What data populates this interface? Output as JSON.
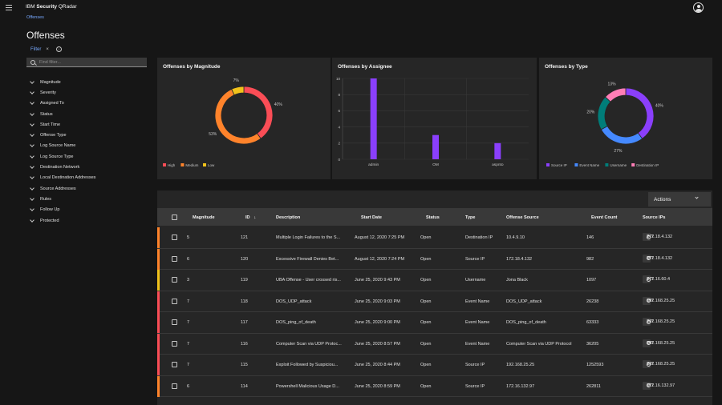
{
  "header": {
    "brand_ibm": "IBM",
    "brand_product": "Security",
    "brand_app": "QRadar"
  },
  "breadcrumb": "Offenses",
  "page_title": "Offenses",
  "filter": {
    "tag": "Filter",
    "close": "×",
    "info": "i",
    "search_placeholder": "Find filter..."
  },
  "filter_items": [
    "Magnitude",
    "Severity",
    "Assigned To",
    "Status",
    "Start Time",
    "Offense Type",
    "Log Source Name",
    "Log Source Type",
    "Destination Network",
    "Local Destination Addresses",
    "Source Addresses",
    "Rules",
    "Follow Up",
    "Protected"
  ],
  "chart_data": [
    {
      "type": "pie",
      "title": "Offenses by Magnitude",
      "categories": [
        "High",
        "Medium",
        "Low"
      ],
      "values": [
        40,
        53,
        7
      ],
      "labels": [
        "40%",
        "53%",
        "7%"
      ],
      "colors": [
        "#fa4d56",
        "#ff832b",
        "#f1c21b"
      ],
      "legend": "bottom"
    },
    {
      "type": "bar",
      "title": "Offenses by Assignee",
      "categories": [
        "admin",
        "OM",
        "aspnto"
      ],
      "values": [
        10,
        3,
        2
      ],
      "ylim": [
        0,
        10
      ],
      "yticks": [
        0,
        2,
        4,
        6,
        8,
        10
      ],
      "color": "#8a3ffc",
      "grid": true
    },
    {
      "type": "pie",
      "title": "Offenses by Type",
      "categories": [
        "Source IP",
        "Event Name",
        "Username",
        "Destination IP"
      ],
      "values": [
        40,
        27,
        20,
        13
      ],
      "labels": [
        "40%",
        "27%",
        "20%",
        "13%"
      ],
      "colors": [
        "#8a3ffc",
        "#4589ff",
        "#007d79",
        "#ff7eb6"
      ],
      "legend": "bottom"
    }
  ],
  "actions_label": "Actions",
  "columns": {
    "magnitude": "Magnitude",
    "id": "ID",
    "sort_arrow": "↓",
    "description": "Description",
    "start_date": "Start Date",
    "status": "Status",
    "type": "Type",
    "offense_source": "Offense Source",
    "event_count": "Event Count",
    "source_ips": "Source IPs"
  },
  "rows": [
    {
      "magnitude": "5",
      "id": "121",
      "description": "Multiple Login Failures to the S...",
      "start_date": "August 12, 2020 7:25 PM",
      "status": "Open",
      "type": "Destination IP",
      "source": "10.4.9.10",
      "events": "146",
      "ip_tag": "INT",
      "ip": "172.18.4.132",
      "sev_color": "#ff832b"
    },
    {
      "magnitude": "6",
      "id": "120",
      "description": "Excessive Firewall Denies Bet...",
      "start_date": "August 12, 2020 7:24 PM",
      "status": "Open",
      "type": "Source IP",
      "source": "172.18.4.132",
      "events": "982",
      "ip_tag": "INT",
      "ip": "172.18.4.132",
      "sev_color": "#ff832b"
    },
    {
      "magnitude": "3",
      "id": "119",
      "description": "UBA Offense - User crossed ris...",
      "start_date": "June 25, 2020 9:43 PM",
      "status": "Open",
      "type": "Username",
      "source": "Jona Black",
      "events": "1097",
      "ip_tag": "INT",
      "ip": "172.16.60.4",
      "sev_color": "#f1c21b"
    },
    {
      "magnitude": "7",
      "id": "118",
      "description": "DOS_UDP_attack",
      "start_date": "June 25, 2020 9:03 PM",
      "status": "Open",
      "type": "Event Name",
      "source": "DOS_UDP_attack",
      "events": "26238",
      "ip_tag": "INT",
      "ip": "192.168.25.25",
      "sev_color": "#fa4d56"
    },
    {
      "magnitude": "7",
      "id": "117",
      "description": "DOS_ping_of_death",
      "start_date": "June 25, 2020 9:00 PM",
      "status": "Open",
      "type": "Event Name",
      "source": "DOS_ping_of_death",
      "events": "63333",
      "ip_tag": "INT",
      "ip": "192.168.25.25",
      "sev_color": "#fa4d56"
    },
    {
      "magnitude": "7",
      "id": "116",
      "description": "Computer Scan via UDP Protoc...",
      "start_date": "June 25, 2020 8:57 PM",
      "status": "Open",
      "type": "Event Name",
      "source": "Computer Scan via UDP Protocol",
      "events": "36205",
      "ip_tag": "INT",
      "ip": "192.168.25.25",
      "sev_color": "#fa4d56"
    },
    {
      "magnitude": "7",
      "id": "115",
      "description": "Exploit Followed by Suspiciou...",
      "start_date": "June 25, 2020 8:44 PM",
      "status": "Open",
      "type": "Source IP",
      "source": "192.168.25.25",
      "events": "1252593",
      "ip_tag": "INT",
      "ip": "192.168.25.25",
      "sev_color": "#fa4d56"
    },
    {
      "magnitude": "6",
      "id": "114",
      "description": "Powershell Malicious Usage D...",
      "start_date": "June 25, 2020 8:59 PM",
      "status": "Open",
      "type": "Source IP",
      "source": "172.16.132.97",
      "events": "262811",
      "ip_tag": "INT",
      "ip": "172.16.132.97",
      "sev_color": "#ff832b"
    }
  ]
}
